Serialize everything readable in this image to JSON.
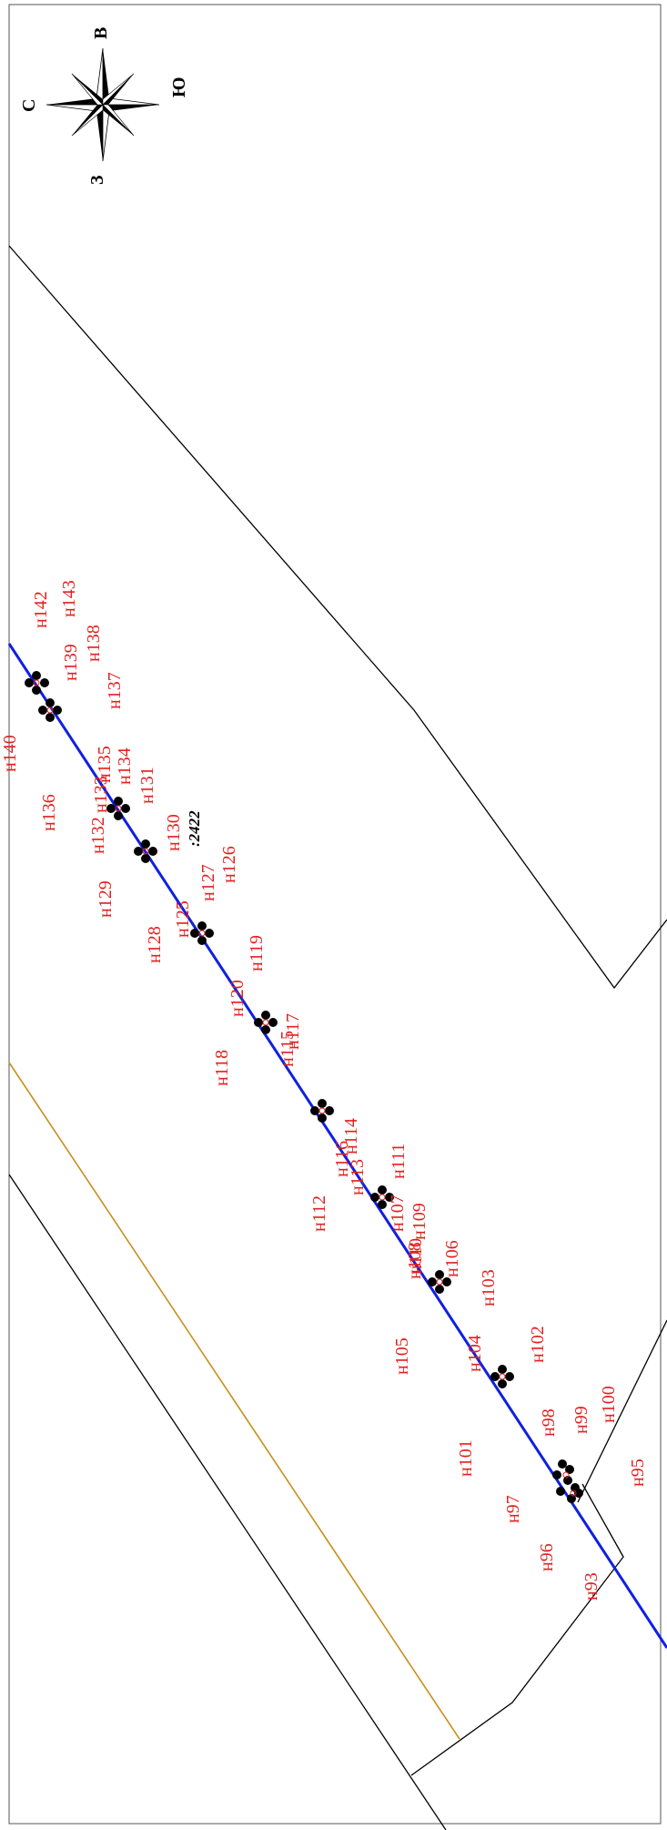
{
  "map": {
    "compass": {
      "north": "С",
      "east": "В",
      "south": "Ю",
      "west": "З"
    },
    "parcel_label": ":2422",
    "point_labels": [
      {
        "id": "p143",
        "text": "н143"
      },
      {
        "id": "p142",
        "text": "н142"
      },
      {
        "id": "p139",
        "text": "н139"
      },
      {
        "id": "p138",
        "text": "н138"
      },
      {
        "id": "p137",
        "text": "н137"
      },
      {
        "id": "p140",
        "text": "н140"
      },
      {
        "id": "p136",
        "text": "н136"
      },
      {
        "id": "p135",
        "text": "н135"
      },
      {
        "id": "p133",
        "text": "н133"
      },
      {
        "id": "p134",
        "text": "н134"
      },
      {
        "id": "p131",
        "text": "н131"
      },
      {
        "id": "p132",
        "text": "н132"
      },
      {
        "id": "p130",
        "text": "н130"
      },
      {
        "id": "p129",
        "text": "н129"
      },
      {
        "id": "p127",
        "text": "н127"
      },
      {
        "id": "p126",
        "text": "н126"
      },
      {
        "id": "p125",
        "text": "н125"
      },
      {
        "id": "p128",
        "text": "н128"
      },
      {
        "id": "p119",
        "text": "н119"
      },
      {
        "id": "p120",
        "text": "н120"
      },
      {
        "id": "p118",
        "text": "н118"
      },
      {
        "id": "p117",
        "text": "н117"
      },
      {
        "id": "p115",
        "text": "н115"
      },
      {
        "id": "p116",
        "text": "н116"
      },
      {
        "id": "p114",
        "text": "н114"
      },
      {
        "id": "p113",
        "text": "н113"
      },
      {
        "id": "p111",
        "text": "н111"
      },
      {
        "id": "p112",
        "text": "н112"
      },
      {
        "id": "p110",
        "text": "н110"
      },
      {
        "id": "p109",
        "text": "н109"
      },
      {
        "id": "p107",
        "text": "н107"
      },
      {
        "id": "p108",
        "text": "н108"
      },
      {
        "id": "p106",
        "text": "н106"
      },
      {
        "id": "p103",
        "text": "н103"
      },
      {
        "id": "p105",
        "text": "н105"
      },
      {
        "id": "p104",
        "text": "н104"
      },
      {
        "id": "p102",
        "text": "н102"
      },
      {
        "id": "p101",
        "text": "н101"
      },
      {
        "id": "p98",
        "text": "н98"
      },
      {
        "id": "p99",
        "text": "н99"
      },
      {
        "id": "p100",
        "text": "н100"
      },
      {
        "id": "p97",
        "text": "н97"
      },
      {
        "id": "p95",
        "text": "н95"
      },
      {
        "id": "p96",
        "text": "н96"
      },
      {
        "id": "p93",
        "text": "н93"
      }
    ],
    "colors": {
      "axis_line": "#1020e0",
      "boundary": "#000000",
      "secondary_line": "#c8901a",
      "labels": "#e0201f",
      "markers": "#000000"
    }
  }
}
